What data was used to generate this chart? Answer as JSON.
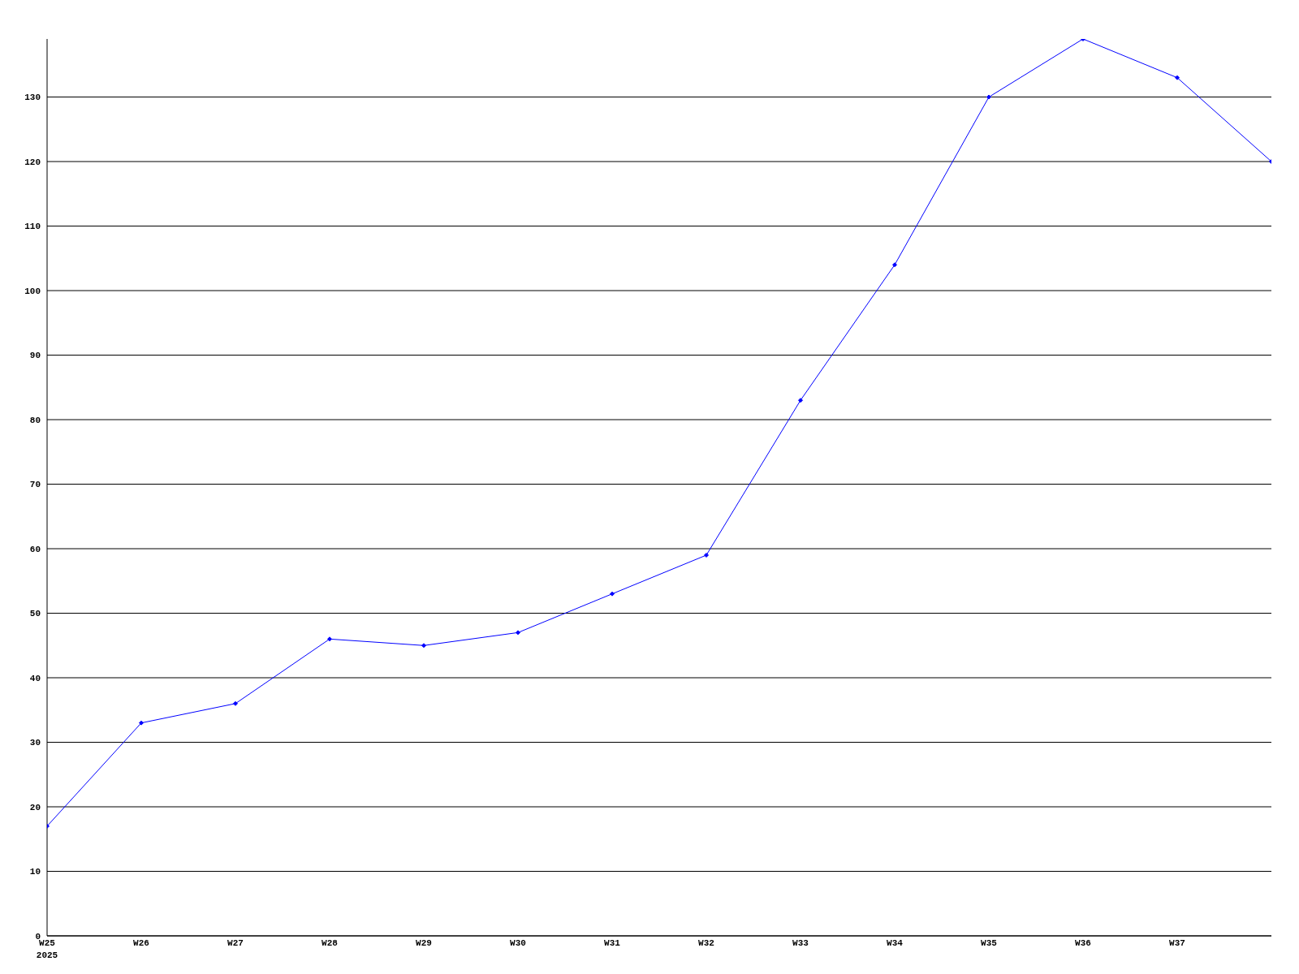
{
  "chart_data": {
    "type": "line",
    "categories": [
      "W25\n2025",
      "W26",
      "W27",
      "W28",
      "W29",
      "W30",
      "W31",
      "W32",
      "W33",
      "W34",
      "W35",
      "W36",
      "W37",
      null
    ],
    "series": [
      {
        "color": "#0000ff",
        "values": [
          17,
          33,
          36,
          46,
          45,
          47,
          53,
          59,
          83,
          104,
          130,
          139,
          133,
          120
        ]
      }
    ],
    "ylim": [
      0,
      139
    ],
    "yticks": [
      0,
      10,
      20,
      30,
      40,
      50,
      60,
      70,
      80,
      90,
      100,
      110,
      120,
      130
    ],
    "grid": "y",
    "marker": "diamond",
    "line_style": "solid"
  }
}
